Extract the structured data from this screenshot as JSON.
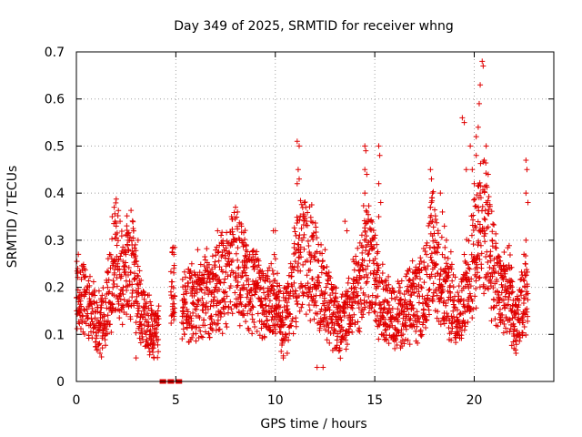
{
  "chart_data": {
    "type": "scatter",
    "title": "Day 349 of 2025, SRMTID for receiver whng",
    "xlabel": "GPS time / hours",
    "ylabel": "SRMTID / TECUs",
    "xlim": [
      0,
      24
    ],
    "ylim": [
      0,
      0.7
    ],
    "xticks": [
      0,
      5,
      10,
      15,
      20
    ],
    "yticks": [
      0,
      0.1,
      0.2,
      0.3,
      0.4,
      0.5,
      0.6,
      0.7
    ],
    "xtick_labels": [
      "0",
      "5",
      "10",
      "15",
      "20"
    ],
    "ytick_labels": [
      "0",
      "0.1",
      "0.2",
      "0.3",
      "0.4",
      "0.5",
      "0.6",
      "0.7"
    ],
    "grid": true,
    "marker": "+",
    "color": "#e00000",
    "series": [
      {
        "name": "SRMTID",
        "profile_x": [
          0,
          0.3,
          0.6,
          1.0,
          1.5,
          2.0,
          2.3,
          2.8,
          3.3,
          3.6,
          3.9,
          4.1,
          4.8,
          5.2,
          5.6,
          6.0,
          6.5,
          7.0,
          7.5,
          8.0,
          8.3,
          8.8,
          9.5,
          10.0,
          10.4,
          10.8,
          11.3,
          11.8,
          12.3,
          12.8,
          13.3,
          13.8,
          14.2,
          14.6,
          15.0,
          15.5,
          16.0,
          16.5,
          17.0,
          17.5,
          17.9,
          18.4,
          18.8,
          19.3,
          19.7,
          20.1,
          20.5,
          20.9,
          21.3,
          21.7,
          22.1,
          22.6
        ],
        "profile_y": [
          0.2,
          0.18,
          0.16,
          0.12,
          0.14,
          0.28,
          0.22,
          0.25,
          0.14,
          0.13,
          0.1,
          0.12,
          0.22,
          0.13,
          0.17,
          0.16,
          0.18,
          0.2,
          0.22,
          0.26,
          0.23,
          0.2,
          0.16,
          0.18,
          0.12,
          0.19,
          0.27,
          0.25,
          0.2,
          0.15,
          0.12,
          0.16,
          0.2,
          0.28,
          0.22,
          0.15,
          0.14,
          0.15,
          0.17,
          0.19,
          0.28,
          0.2,
          0.18,
          0.14,
          0.22,
          0.3,
          0.33,
          0.25,
          0.18,
          0.2,
          0.12,
          0.18
        ],
        "peaks": [
          {
            "x": 0.1,
            "y": 0.27
          },
          {
            "x": 0.4,
            "y": 0.24
          },
          {
            "x": 1.8,
            "y": 0.35
          },
          {
            "x": 1.9,
            "y": 0.37
          },
          {
            "x": 2.0,
            "y": 0.33
          },
          {
            "x": 2.6,
            "y": 0.3
          },
          {
            "x": 2.8,
            "y": 0.29
          },
          {
            "x": 3.1,
            "y": 0.3
          },
          {
            "x": 3.8,
            "y": 0.07
          },
          {
            "x": 3.9,
            "y": 0.05
          },
          {
            "x": 3.0,
            "y": 0.05
          },
          {
            "x": 4.9,
            "y": 0.27
          },
          {
            "x": 4.9,
            "y": 0.24
          },
          {
            "x": 5.8,
            "y": 0.25
          },
          {
            "x": 6.1,
            "y": 0.28
          },
          {
            "x": 7.1,
            "y": 0.32
          },
          {
            "x": 7.8,
            "y": 0.35
          },
          {
            "x": 8.0,
            "y": 0.37
          },
          {
            "x": 8.1,
            "y": 0.36
          },
          {
            "x": 8.3,
            "y": 0.33
          },
          {
            "x": 9.0,
            "y": 0.26
          },
          {
            "x": 9.9,
            "y": 0.32
          },
          {
            "x": 10.0,
            "y": 0.32
          },
          {
            "x": 10.4,
            "y": 0.05
          },
          {
            "x": 10.6,
            "y": 0.06
          },
          {
            "x": 11.1,
            "y": 0.51
          },
          {
            "x": 11.2,
            "y": 0.5
          },
          {
            "x": 11.15,
            "y": 0.45
          },
          {
            "x": 11.2,
            "y": 0.43
          },
          {
            "x": 11.1,
            "y": 0.42
          },
          {
            "x": 11.4,
            "y": 0.35
          },
          {
            "x": 11.8,
            "y": 0.34
          },
          {
            "x": 12.4,
            "y": 0.03
          },
          {
            "x": 12.1,
            "y": 0.03
          },
          {
            "x": 12.5,
            "y": 0.28
          },
          {
            "x": 13.5,
            "y": 0.34
          },
          {
            "x": 13.6,
            "y": 0.32
          },
          {
            "x": 14.5,
            "y": 0.5
          },
          {
            "x": 14.55,
            "y": 0.49
          },
          {
            "x": 14.5,
            "y": 0.45
          },
          {
            "x": 14.6,
            "y": 0.44
          },
          {
            "x": 14.5,
            "y": 0.4
          },
          {
            "x": 14.6,
            "y": 0.36
          },
          {
            "x": 14.55,
            "y": 0.3
          },
          {
            "x": 15.2,
            "y": 0.5
          },
          {
            "x": 15.25,
            "y": 0.48
          },
          {
            "x": 15.2,
            "y": 0.42
          },
          {
            "x": 15.3,
            "y": 0.38
          },
          {
            "x": 15.2,
            "y": 0.35
          },
          {
            "x": 17.8,
            "y": 0.45
          },
          {
            "x": 17.85,
            "y": 0.43
          },
          {
            "x": 17.9,
            "y": 0.4
          },
          {
            "x": 17.8,
            "y": 0.37
          },
          {
            "x": 17.9,
            "y": 0.34
          },
          {
            "x": 18.3,
            "y": 0.4
          },
          {
            "x": 18.4,
            "y": 0.36
          },
          {
            "x": 18.5,
            "y": 0.33
          },
          {
            "x": 18.6,
            "y": 0.3
          },
          {
            "x": 19.4,
            "y": 0.56
          },
          {
            "x": 19.5,
            "y": 0.55
          },
          {
            "x": 19.6,
            "y": 0.45
          },
          {
            "x": 19.8,
            "y": 0.5
          },
          {
            "x": 19.9,
            "y": 0.45
          },
          {
            "x": 20.0,
            "y": 0.42
          },
          {
            "x": 20.1,
            "y": 0.52
          },
          {
            "x": 20.2,
            "y": 0.54
          },
          {
            "x": 20.1,
            "y": 0.48
          },
          {
            "x": 20.25,
            "y": 0.59
          },
          {
            "x": 20.3,
            "y": 0.63
          },
          {
            "x": 20.4,
            "y": 0.68
          },
          {
            "x": 20.45,
            "y": 0.67
          },
          {
            "x": 20.5,
            "y": 0.47
          },
          {
            "x": 20.6,
            "y": 0.5
          },
          {
            "x": 20.7,
            "y": 0.44
          },
          {
            "x": 20.3,
            "y": 0.4
          },
          {
            "x": 20.2,
            "y": 0.37
          },
          {
            "x": 20.6,
            "y": 0.38
          },
          {
            "x": 20.9,
            "y": 0.3
          },
          {
            "x": 21.0,
            "y": 0.26
          },
          {
            "x": 21.4,
            "y": 0.22
          },
          {
            "x": 21.8,
            "y": 0.24
          },
          {
            "x": 22.0,
            "y": 0.07
          },
          {
            "x": 22.1,
            "y": 0.06
          },
          {
            "x": 22.6,
            "y": 0.47
          },
          {
            "x": 22.65,
            "y": 0.45
          },
          {
            "x": 22.6,
            "y": 0.4
          },
          {
            "x": 22.7,
            "y": 0.38
          },
          {
            "x": 22.6,
            "y": 0.3
          },
          {
            "x": 22.5,
            "y": 0.27
          }
        ],
        "zeros": [
          4.3,
          4.4,
          4.7,
          4.8,
          5.1,
          5.2
        ]
      }
    ]
  }
}
